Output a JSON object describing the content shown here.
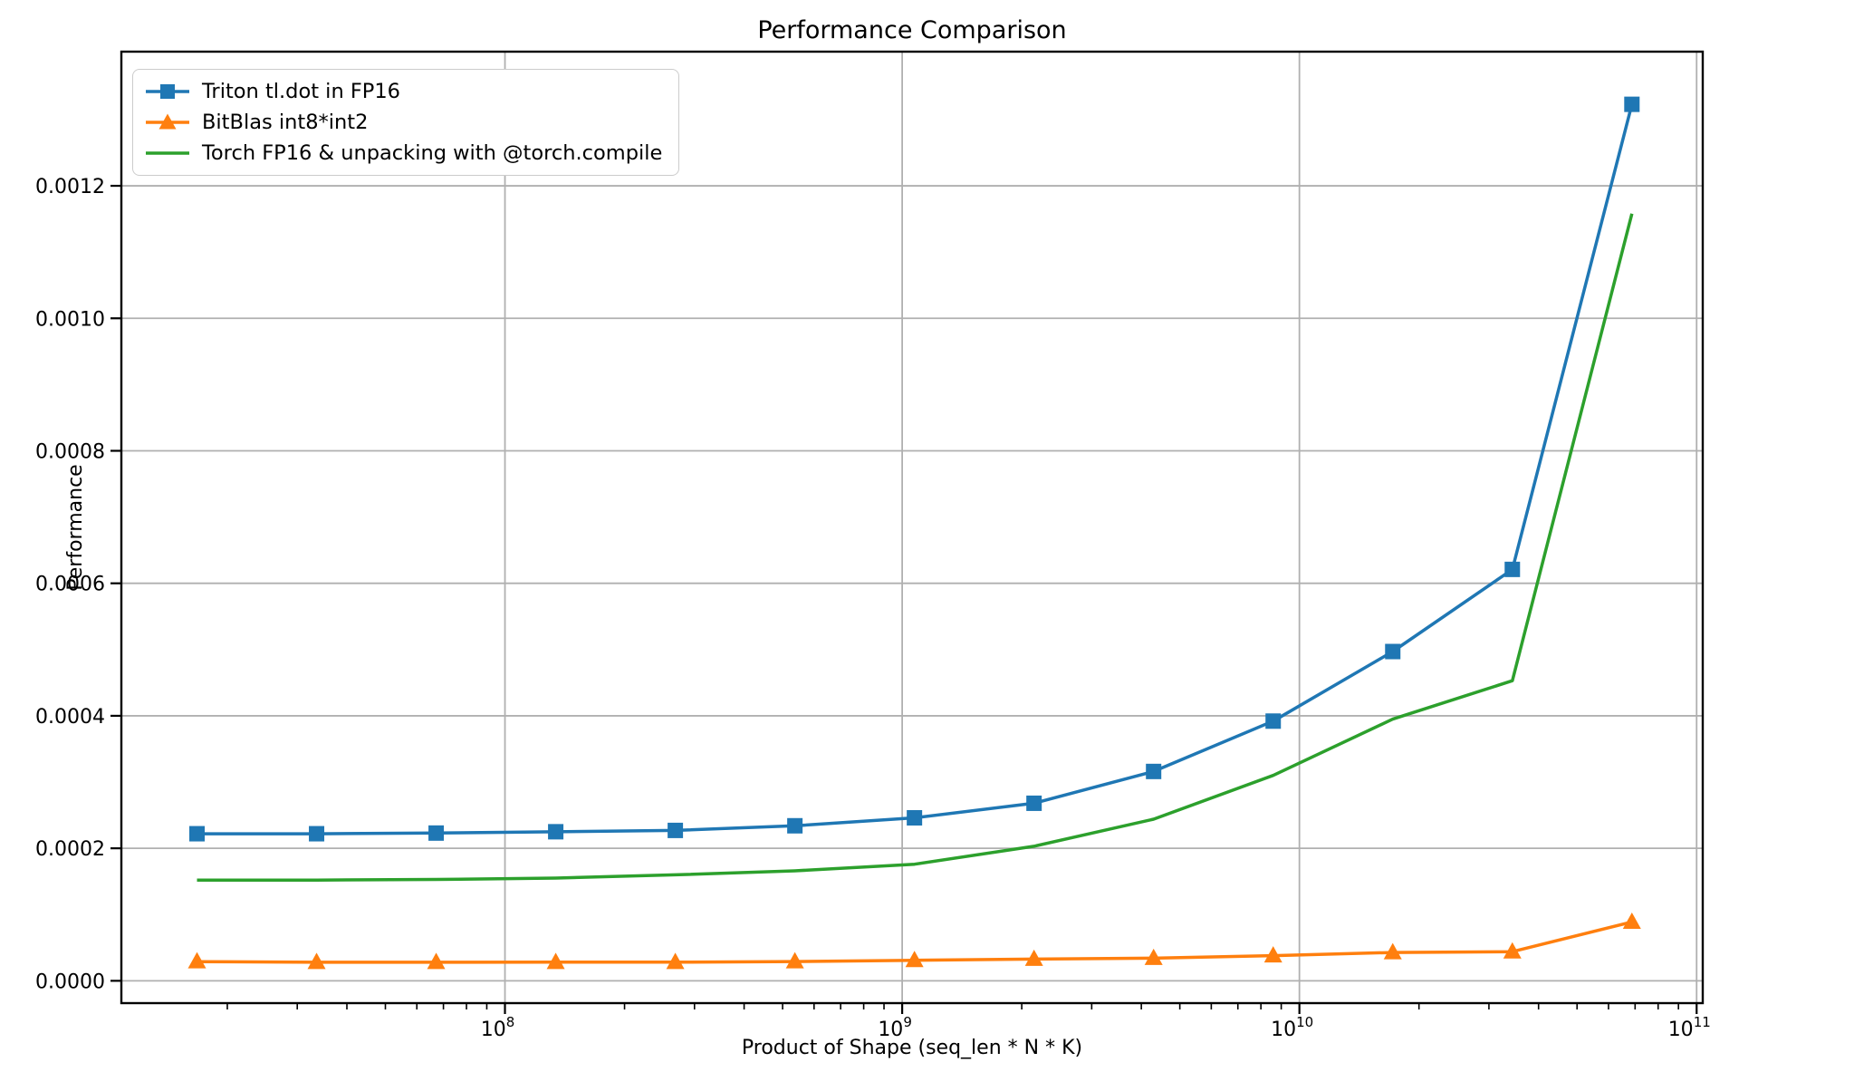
{
  "figure": {
    "background": "#ffffff",
    "grid_color": "#b0b0b0",
    "spine_color": "#000000",
    "text_color": "#000000"
  },
  "chart_data": {
    "type": "line",
    "title": "Performance Comparison",
    "xlabel": "Product of Shape (seq_len * N * K)",
    "ylabel": "Performance",
    "x_scale": "log",
    "y_scale": "linear",
    "grid": true,
    "legend_position": "upper left",
    "xlim": [
      10822000,
      103610000000
    ],
    "ylim": [
      -3.37e-05,
      0.0014025
    ],
    "x": [
      16777216,
      33554432,
      67108864,
      134217728,
      268435456,
      536870912,
      1073741824,
      2147483648,
      4294967296,
      8589934592,
      17179869184,
      34359738368,
      68719476736
    ],
    "series": [
      {
        "name": "Triton tl.dot in FP16",
        "color": "#1f77b4",
        "marker": "square",
        "values": [
          0.000222,
          0.000222,
          0.000223,
          0.000225,
          0.000227,
          0.000234,
          0.000246,
          0.000268,
          0.000316,
          0.000392,
          0.000497,
          0.000621,
          0.001323
        ]
      },
      {
        "name": "BitBlas int8*int2",
        "color": "#ff7f0e",
        "marker": "triangle-up",
        "values": [
          2.9e-05,
          2.8e-05,
          2.8e-05,
          2.81e-05,
          2.81e-05,
          2.91e-05,
          3.1e-05,
          3.28e-05,
          3.41e-05,
          3.8e-05,
          4.28e-05,
          4.4e-05,
          8.88e-05
        ]
      },
      {
        "name": "Torch FP16 & unpacking with @torch.compile",
        "color": "#2ca02c",
        "marker": "none",
        "values": [
          0.000152,
          0.000152,
          0.000153,
          0.000155,
          0.00016,
          0.000166,
          0.000176,
          0.000203,
          0.000244,
          0.00031,
          0.000395,
          0.000453,
          0.001158
        ]
      }
    ],
    "x_ticks": [
      {
        "value": 100000000,
        "base": "10",
        "exp": "8"
      },
      {
        "value": 1000000000,
        "base": "10",
        "exp": "9"
      },
      {
        "value": 10000000000,
        "base": "10",
        "exp": "10"
      },
      {
        "value": 100000000000,
        "base": "10",
        "exp": "11"
      }
    ],
    "y_ticks": [
      {
        "value": 0.0,
        "label": "0.0000"
      },
      {
        "value": 0.0002,
        "label": "0.0002"
      },
      {
        "value": 0.0004,
        "label": "0.0004"
      },
      {
        "value": 0.0006,
        "label": "0.0006"
      },
      {
        "value": 0.0008,
        "label": "0.0008"
      },
      {
        "value": 0.001,
        "label": "0.0010"
      },
      {
        "value": 0.0012,
        "label": "0.0012"
      }
    ]
  }
}
